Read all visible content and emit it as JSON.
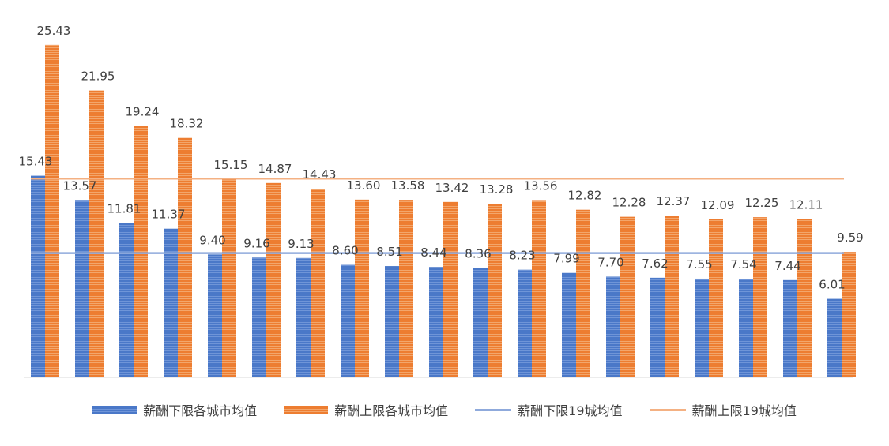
{
  "chart_data": {
    "type": "bar",
    "title": "",
    "xlabel": "",
    "ylabel": "",
    "ylim": [
      0,
      27
    ],
    "grid": false,
    "legend_position": "bottom",
    "categories": [
      "",
      "",
      "",
      "",
      "",
      "",
      "",
      "",
      "",
      "",
      "",
      "",
      "",
      "",
      "",
      "",
      "",
      "",
      ""
    ],
    "series": [
      {
        "name": "薪酬下限各城市均值",
        "kind": "bar",
        "color": "#4472C4",
        "values": [
          15.43,
          13.57,
          11.81,
          11.37,
          9.4,
          9.16,
          9.13,
          8.6,
          8.51,
          8.44,
          8.36,
          8.23,
          7.99,
          7.7,
          7.62,
          7.55,
          7.54,
          7.44,
          6.01
        ],
        "labels": [
          "15.43",
          "13.57",
          "11.81",
          "11.37",
          "9.40",
          "9.16",
          "9.13",
          "8.60",
          "8.51",
          "8.44",
          "8.36",
          "8.23",
          "7.99",
          "7.70",
          "7.62",
          "7.55",
          "7.54",
          "7.44",
          "6.01"
        ]
      },
      {
        "name": "薪酬上限各城市均值",
        "kind": "bar",
        "color": "#ED7D31",
        "values": [
          25.43,
          21.95,
          19.24,
          18.32,
          15.15,
          14.87,
          14.43,
          13.6,
          13.58,
          13.42,
          13.28,
          13.56,
          12.82,
          12.28,
          12.37,
          12.09,
          12.25,
          12.11,
          9.59
        ],
        "labels": [
          "25.43",
          "21.95",
          "19.24",
          "18.32",
          "15.15",
          "14.87",
          "14.43",
          "13.60",
          "13.58",
          "13.42",
          "13.28",
          "13.56",
          "12.82",
          "12.28",
          "12.37",
          "12.09",
          "12.25",
          "12.11",
          "9.59"
        ]
      },
      {
        "name": "薪酬下限19城均值",
        "kind": "line",
        "color": "#8FAADC",
        "value": 9.5
      },
      {
        "name": "薪酬上限19城均值",
        "kind": "line",
        "color": "#F4B183",
        "value": 15.2
      }
    ]
  }
}
